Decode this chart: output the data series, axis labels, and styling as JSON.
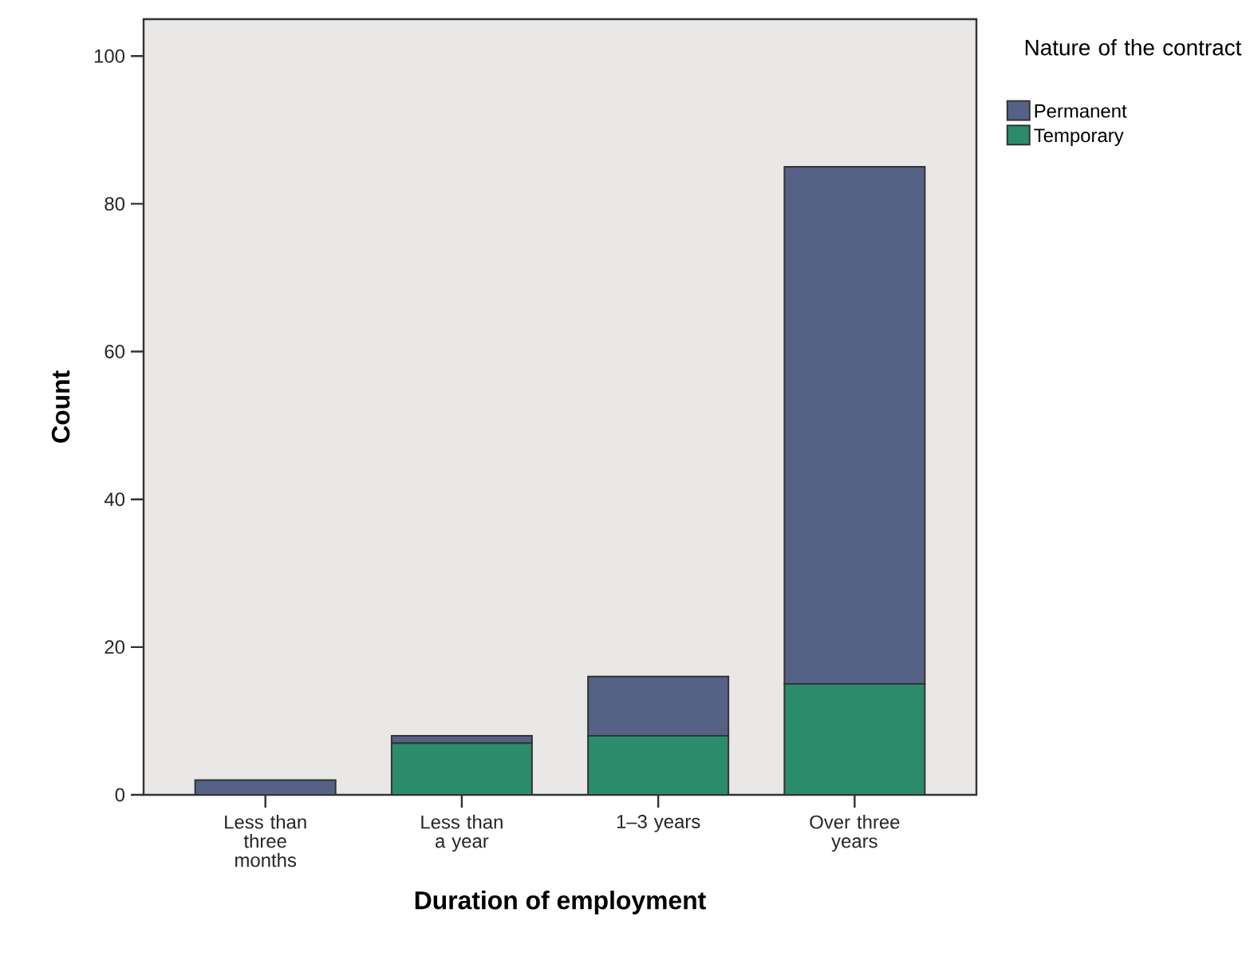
{
  "chart_data": {
    "type": "bar",
    "stacked": true,
    "xlabel": "Duration of employment",
    "ylabel": "Count",
    "legend_title": "Nature of the contract",
    "legend": "top right",
    "categories": [
      "Less than three months",
      "Less than a year",
      "1–3 years",
      "Over three years"
    ],
    "series": [
      {
        "name": "Temporary",
        "color": "#2a8c6b",
        "values": [
          0,
          7,
          8,
          15
        ]
      },
      {
        "name": "Permanent",
        "color": "#556285",
        "values": [
          2,
          1,
          8,
          70
        ]
      }
    ],
    "ylim": [
      0,
      105
    ],
    "yticks": [
      0,
      20,
      40,
      60,
      80,
      100
    ],
    "grid": false
  }
}
